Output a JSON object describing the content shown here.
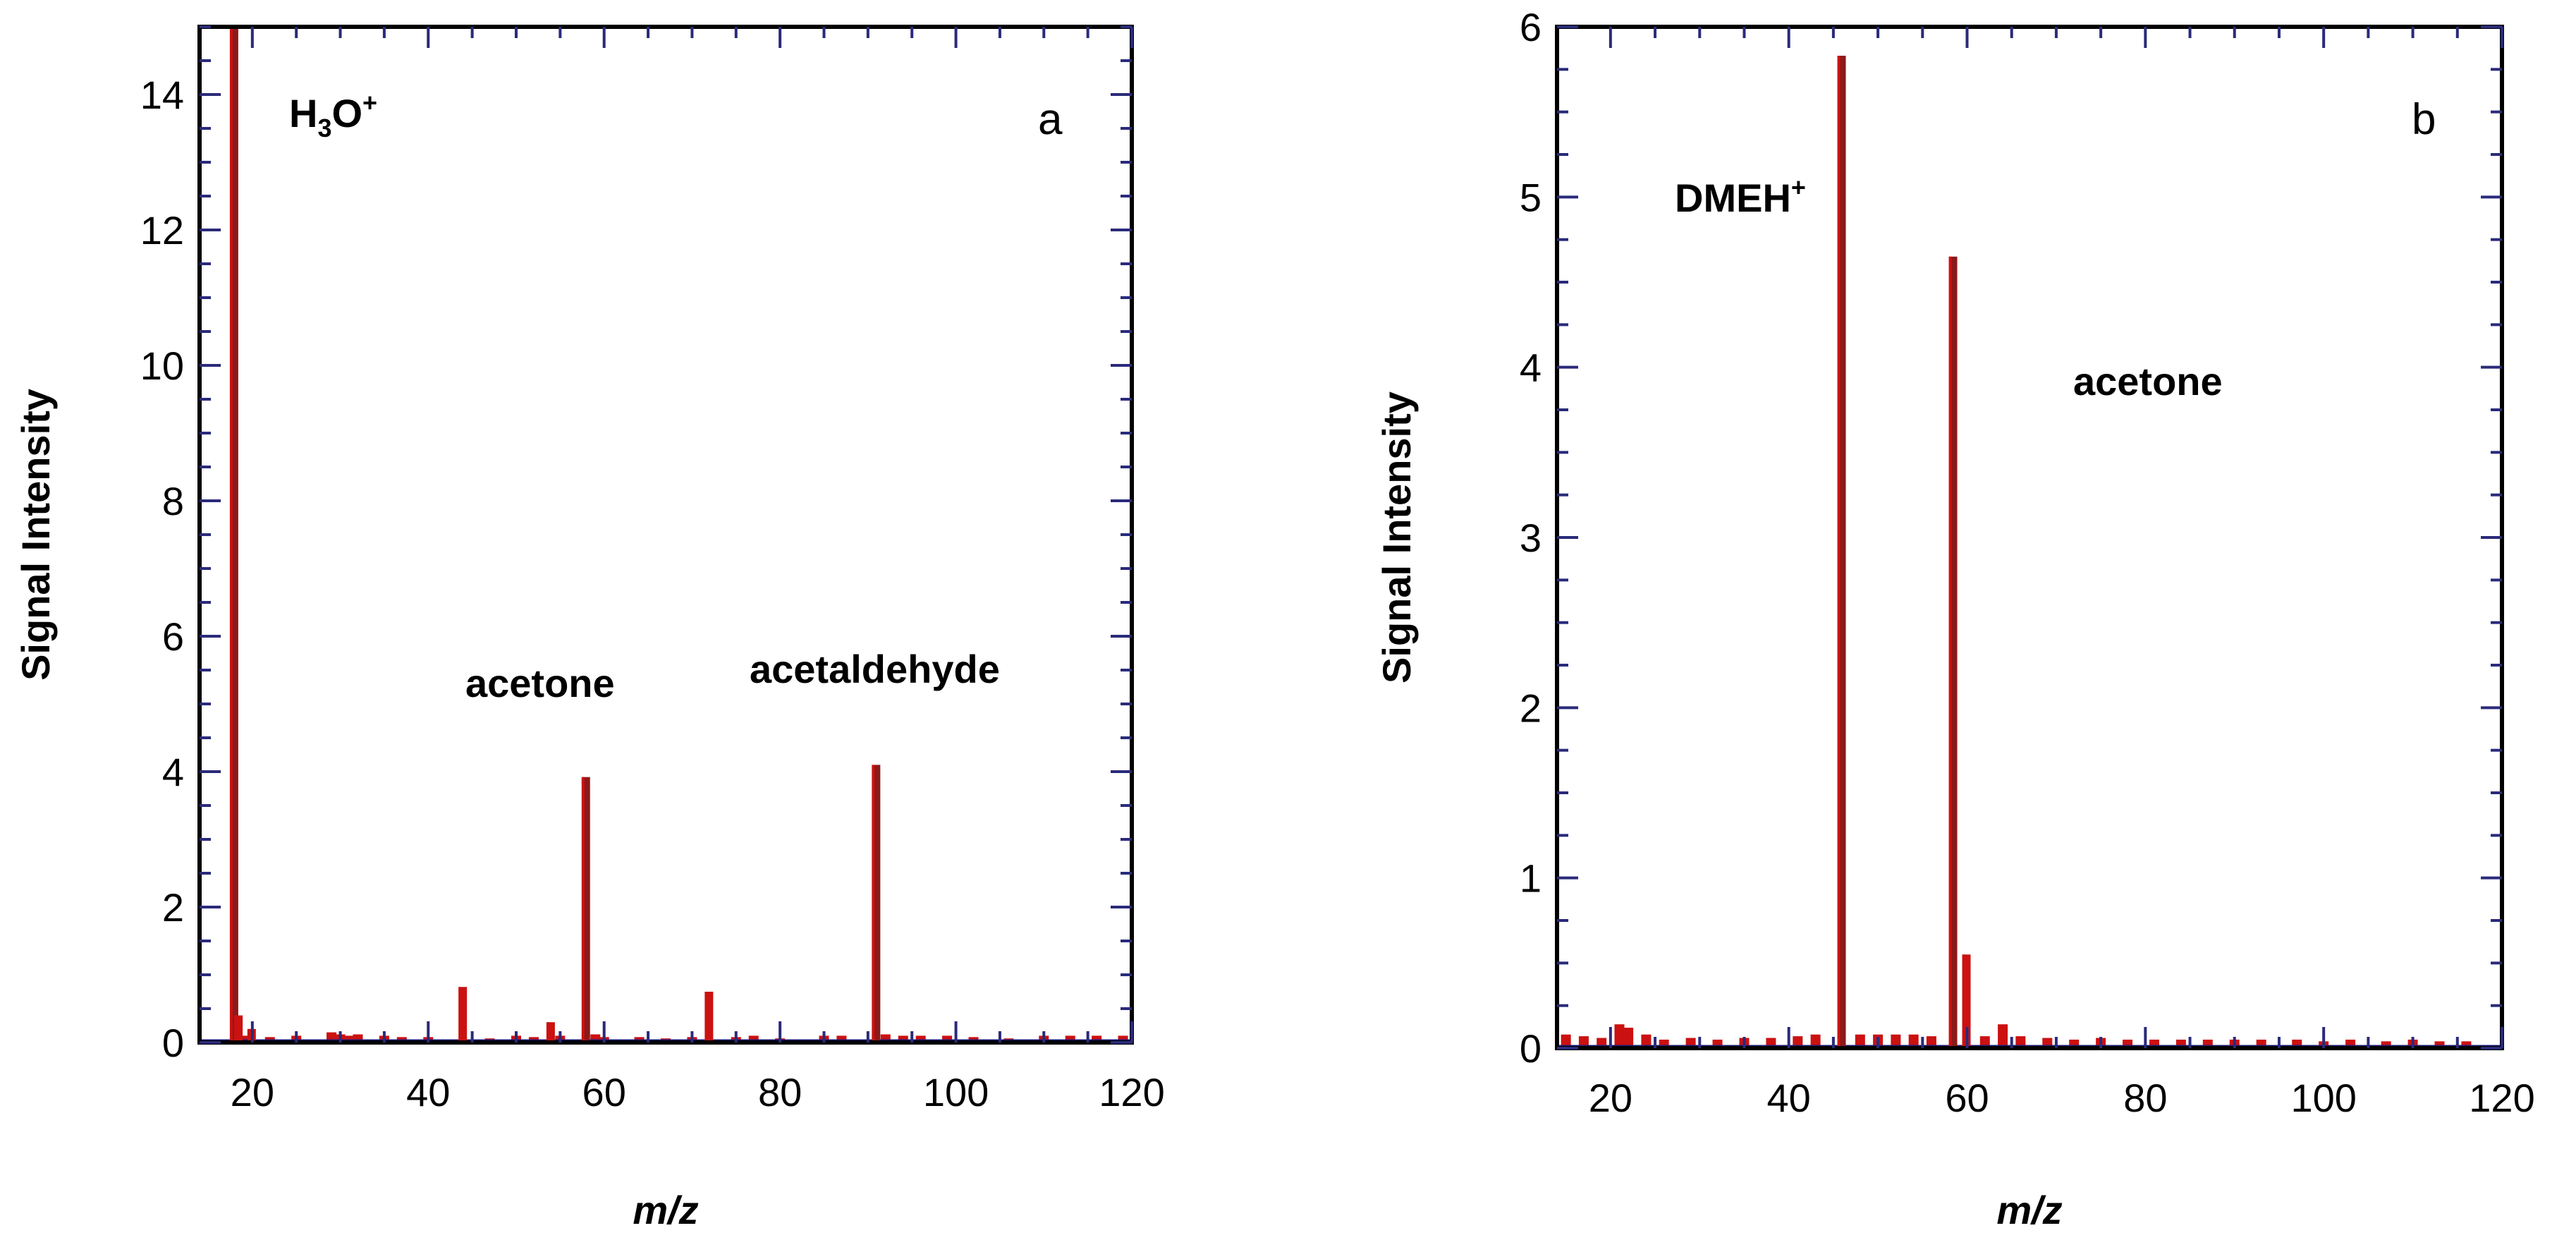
{
  "chart_data": [
    {
      "type": "bar",
      "panel_label": "a",
      "xlabel": "m/z",
      "ylabel": "Signal Intensity",
      "xlim": [
        14,
        120
      ],
      "ylim": [
        0,
        15
      ],
      "xticks": [
        20,
        40,
        60,
        80,
        100,
        120
      ],
      "yticks": [
        0,
        2,
        4,
        6,
        8,
        10,
        12,
        14
      ],
      "annotations": [
        {
          "text": "H",
          "sub": "3",
          "text2": "O",
          "sup": "+",
          "x": 18
        },
        {
          "text": "acetone",
          "x": 58
        },
        {
          "text": "acetaldehyde",
          "x": 91
        }
      ],
      "peaks": [
        {
          "x": 18,
          "y": 15
        },
        {
          "x": 18.5,
          "y": 0.4
        },
        {
          "x": 20,
          "y": 0.2
        },
        {
          "x": 44,
          "y": 0.82
        },
        {
          "x": 54,
          "y": 0.3
        },
        {
          "x": 58,
          "y": 3.92
        },
        {
          "x": 72,
          "y": 0.75
        },
        {
          "x": 91,
          "y": 4.1
        }
      ],
      "baseline_noise": [
        {
          "x": 19,
          "y": 0.1
        },
        {
          "x": 22,
          "y": 0.08
        },
        {
          "x": 25,
          "y": 0.1
        },
        {
          "x": 29,
          "y": 0.15
        },
        {
          "x": 30,
          "y": 0.12
        },
        {
          "x": 31,
          "y": 0.1
        },
        {
          "x": 32,
          "y": 0.12
        },
        {
          "x": 35,
          "y": 0.1
        },
        {
          "x": 37,
          "y": 0.08
        },
        {
          "x": 40,
          "y": 0.08
        },
        {
          "x": 47,
          "y": 0.06
        },
        {
          "x": 50,
          "y": 0.1
        },
        {
          "x": 52,
          "y": 0.08
        },
        {
          "x": 55,
          "y": 0.1
        },
        {
          "x": 59,
          "y": 0.12
        },
        {
          "x": 60,
          "y": 0.08
        },
        {
          "x": 64,
          "y": 0.08
        },
        {
          "x": 67,
          "y": 0.06
        },
        {
          "x": 70,
          "y": 0.08
        },
        {
          "x": 75,
          "y": 0.08
        },
        {
          "x": 77,
          "y": 0.1
        },
        {
          "x": 80,
          "y": 0.06
        },
        {
          "x": 85,
          "y": 0.1
        },
        {
          "x": 87,
          "y": 0.1
        },
        {
          "x": 92,
          "y": 0.12
        },
        {
          "x": 94,
          "y": 0.1
        },
        {
          "x": 96,
          "y": 0.1
        },
        {
          "x": 99,
          "y": 0.1
        },
        {
          "x": 102,
          "y": 0.08
        },
        {
          "x": 106,
          "y": 0.06
        },
        {
          "x": 110,
          "y": 0.1
        },
        {
          "x": 113,
          "y": 0.1
        },
        {
          "x": 116,
          "y": 0.1
        },
        {
          "x": 119,
          "y": 0.1
        }
      ]
    },
    {
      "type": "bar",
      "panel_label": "b",
      "xlabel": "m/z",
      "ylabel": "Signal Intensity",
      "xlim": [
        14,
        120
      ],
      "ylim": [
        0,
        6
      ],
      "xticks": [
        20,
        40,
        60,
        80,
        100,
        120
      ],
      "yticks": [
        0,
        1,
        2,
        3,
        4,
        5,
        6
      ],
      "annotations": [
        {
          "text": "DMEH",
          "sup": "+",
          "x": 46
        },
        {
          "text": "acetone",
          "x": 59
        }
      ],
      "peaks": [
        {
          "x": 46,
          "y": 5.83
        },
        {
          "x": 58.5,
          "y": 4.65
        },
        {
          "x": 60,
          "y": 0.55
        }
      ],
      "baseline_noise": [
        {
          "x": 15,
          "y": 0.08
        },
        {
          "x": 17,
          "y": 0.07
        },
        {
          "x": 19,
          "y": 0.06
        },
        {
          "x": 21,
          "y": 0.14
        },
        {
          "x": 22,
          "y": 0.12
        },
        {
          "x": 24,
          "y": 0.08
        },
        {
          "x": 26,
          "y": 0.05
        },
        {
          "x": 29,
          "y": 0.06
        },
        {
          "x": 32,
          "y": 0.05
        },
        {
          "x": 35,
          "y": 0.06
        },
        {
          "x": 38,
          "y": 0.06
        },
        {
          "x": 41,
          "y": 0.07
        },
        {
          "x": 43,
          "y": 0.08
        },
        {
          "x": 48,
          "y": 0.08
        },
        {
          "x": 50,
          "y": 0.08
        },
        {
          "x": 52,
          "y": 0.08
        },
        {
          "x": 54,
          "y": 0.08
        },
        {
          "x": 56,
          "y": 0.07
        },
        {
          "x": 62,
          "y": 0.07
        },
        {
          "x": 64,
          "y": 0.14
        },
        {
          "x": 66,
          "y": 0.07
        },
        {
          "x": 69,
          "y": 0.06
        },
        {
          "x": 72,
          "y": 0.05
        },
        {
          "x": 75,
          "y": 0.06
        },
        {
          "x": 78,
          "y": 0.05
        },
        {
          "x": 81,
          "y": 0.05
        },
        {
          "x": 84,
          "y": 0.05
        },
        {
          "x": 87,
          "y": 0.05
        },
        {
          "x": 90,
          "y": 0.05
        },
        {
          "x": 93,
          "y": 0.05
        },
        {
          "x": 97,
          "y": 0.05
        },
        {
          "x": 100,
          "y": 0.04
        },
        {
          "x": 103,
          "y": 0.05
        },
        {
          "x": 107,
          "y": 0.04
        },
        {
          "x": 110,
          "y": 0.05
        },
        {
          "x": 113,
          "y": 0.04
        },
        {
          "x": 116,
          "y": 0.04
        }
      ]
    }
  ],
  "colors": {
    "peak": "#cc1111",
    "peak_dark": "#8b1a1a",
    "axis": "#1a1a4e",
    "tick": "#2a2a7a",
    "baseline": "#1a1a7a"
  }
}
